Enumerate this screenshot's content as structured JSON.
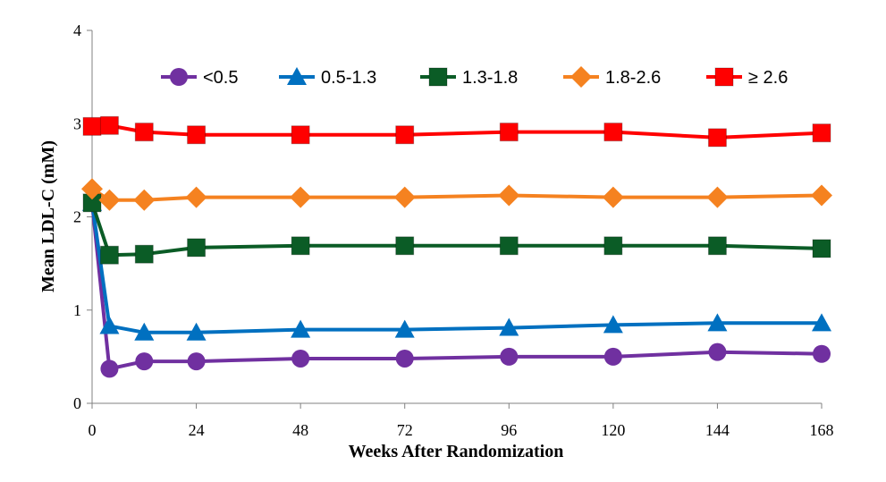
{
  "chart_data": {
    "type": "line",
    "title": "",
    "xlabel": "Weeks After Randomization",
    "ylabel": "Mean LDL-C (mM)",
    "xlim": [
      0,
      168
    ],
    "ylim": [
      0,
      4
    ],
    "xticks": [
      0,
      24,
      48,
      72,
      96,
      120,
      144,
      168
    ],
    "yticks": [
      0,
      1,
      2,
      3,
      4
    ],
    "grid": false,
    "legend_position": "top",
    "x": [
      0,
      4,
      12,
      24,
      48,
      72,
      96,
      120,
      144,
      168
    ],
    "series": [
      {
        "name": "<0.5",
        "color": "#7030A0",
        "marker": "circle",
        "values": [
          2.15,
          0.37,
          0.45,
          0.45,
          0.48,
          0.48,
          0.5,
          0.5,
          0.55,
          0.53
        ]
      },
      {
        "name": "0.5-1.3",
        "color": "#0070C0",
        "marker": "triangle",
        "values": [
          2.15,
          0.83,
          0.76,
          0.76,
          0.79,
          0.79,
          0.81,
          0.84,
          0.86,
          0.86
        ]
      },
      {
        "name": "1.3-1.8",
        "color": "#0B5C26",
        "marker": "square",
        "values": [
          2.15,
          1.59,
          1.6,
          1.67,
          1.69,
          1.69,
          1.69,
          1.69,
          1.69,
          1.66
        ]
      },
      {
        "name": "1.8-2.6",
        "color": "#F58220",
        "marker": "diamond",
        "values": [
          2.3,
          2.18,
          2.18,
          2.21,
          2.21,
          2.21,
          2.23,
          2.21,
          2.21,
          2.23
        ]
      },
      {
        "name": "≥ 2.6",
        "color": "#FF0000",
        "marker": "square",
        "values": [
          2.97,
          2.98,
          2.91,
          2.88,
          2.88,
          2.88,
          2.91,
          2.91,
          2.85,
          2.9
        ]
      }
    ]
  }
}
